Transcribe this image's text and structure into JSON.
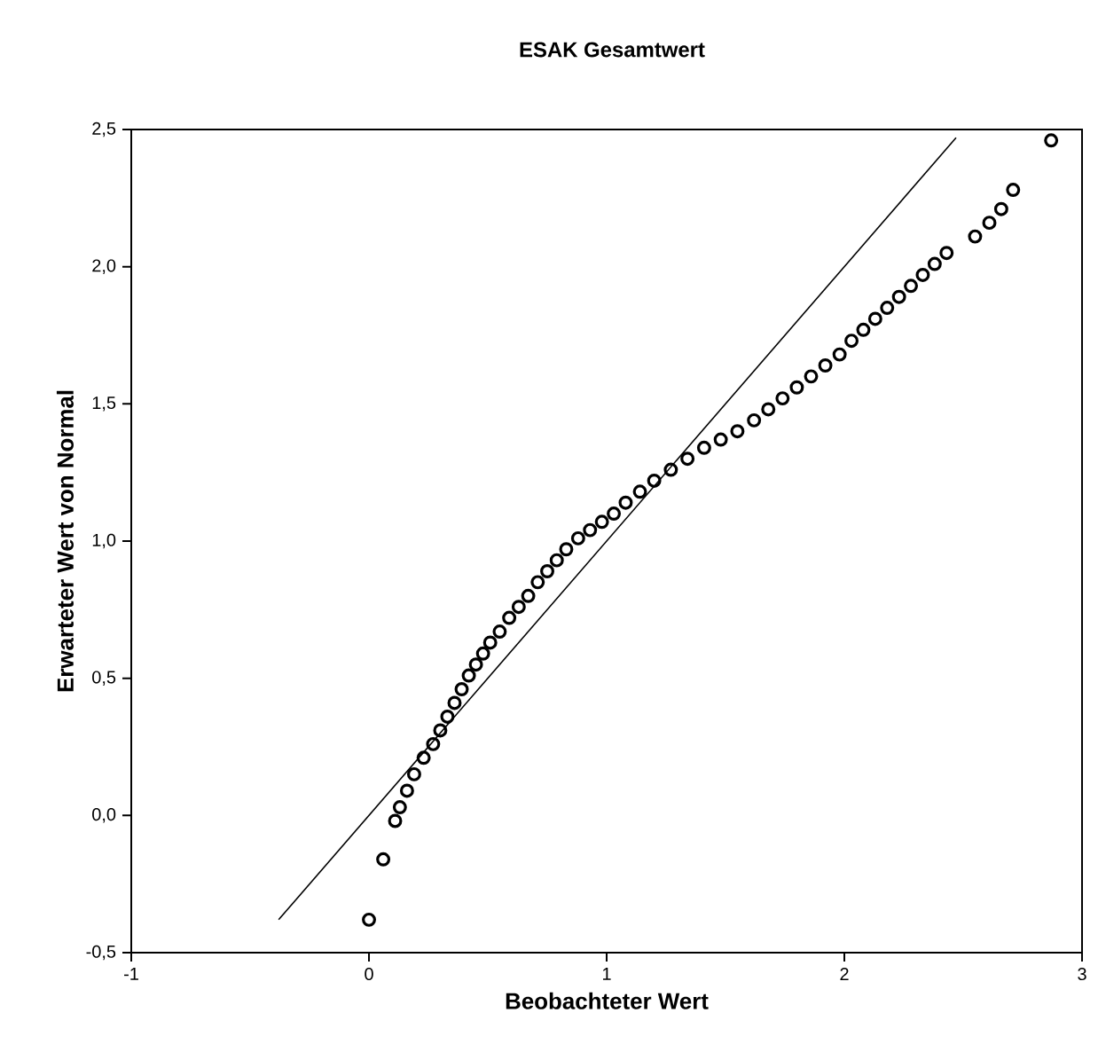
{
  "chart_data": {
    "type": "scatter",
    "title": "ESAK Gesamtwert",
    "xlabel": "Beobachteter Wert",
    "ylabel": "Erwarteter Wert von Normal",
    "xlim": [
      -1,
      3
    ],
    "ylim": [
      -0.5,
      2.5
    ],
    "xticks": [
      -1,
      0,
      1,
      2,
      3
    ],
    "yticks": [
      {
        "value": -0.5,
        "label": "-0,5"
      },
      {
        "value": 0,
        "label": "0,0"
      },
      {
        "value": 0.5,
        "label": "0,5"
      },
      {
        "value": 1,
        "label": "1,0"
      },
      {
        "value": 1.5,
        "label": "1,5"
      },
      {
        "value": 2,
        "label": "2,0"
      },
      {
        "value": 2.5,
        "label": "2,5"
      }
    ],
    "grid": false,
    "marker": "circle",
    "series": [
      {
        "color": "#000000",
        "x": [
          0,
          0.06,
          0.11,
          0.13,
          0.16,
          0.19,
          0.23,
          0.27,
          0.3,
          0.33,
          0.36,
          0.39,
          0.42,
          0.45,
          0.48,
          0.51,
          0.55,
          0.59,
          0.63,
          0.67,
          0.71,
          0.75,
          0.79,
          0.83,
          0.88,
          0.93,
          0.98,
          1.03,
          1.08,
          1.14,
          1.2,
          1.27,
          1.34,
          1.41,
          1.48,
          1.55,
          1.62,
          1.68,
          1.74,
          1.8,
          1.86,
          1.92,
          1.98,
          2.03,
          2.08,
          2.13,
          2.18,
          2.23,
          2.28,
          2.33,
          2.38,
          2.43,
          2.55,
          2.61,
          2.66,
          2.71,
          2.87
        ],
        "values": [
          -0.38,
          -0.16,
          -0.02,
          0.03,
          0.09,
          0.15,
          0.21,
          0.26,
          0.31,
          0.36,
          0.41,
          0.46,
          0.51,
          0.55,
          0.59,
          0.63,
          0.67,
          0.72,
          0.76,
          0.8,
          0.85,
          0.89,
          0.93,
          0.97,
          1.01,
          1.04,
          1.07,
          1.1,
          1.14,
          1.18,
          1.22,
          1.26,
          1.3,
          1.34,
          1.37,
          1.4,
          1.44,
          1.48,
          1.52,
          1.56,
          1.6,
          1.64,
          1.68,
          1.73,
          1.77,
          1.81,
          1.85,
          1.89,
          1.93,
          1.97,
          2.01,
          2.05,
          2.11,
          2.16,
          2.21,
          2.28,
          2.46
        ]
      },
      {
        "type": "line",
        "color": "#000000",
        "marker": "none",
        "x": [
          -0.38,
          2.47
        ],
        "values": [
          -0.38,
          2.47
        ]
      }
    ]
  }
}
